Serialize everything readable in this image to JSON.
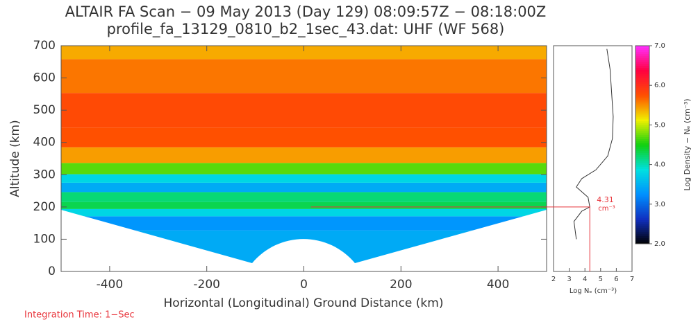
{
  "chart_data": [
    {
      "type": "heatmap",
      "title": "ALTAIR FA Scan − 09 May 2013 (Day 129) 08:09:57Z − 08:18:00Z",
      "subtitle": "profile_fa_13129_0810_b2_1sec_43.dat: UHF  (WF 568)",
      "xlabel": "Horizontal (Longitudinal) Ground Distance (km)",
      "ylabel": "Altitude (km)",
      "xlim": [
        -500,
        500
      ],
      "xticks": [
        -400,
        -200,
        0,
        200,
        400
      ],
      "ylim": [
        0,
        700
      ],
      "yticks": [
        0,
        100,
        200,
        300,
        400,
        500,
        600,
        700
      ],
      "footnote": "Integration Time: 1−Sec"
    },
    {
      "type": "line",
      "xlabel": "Log Nₑ (cm⁻³)",
      "xlim": [
        2,
        7
      ],
      "xticks": [
        2,
        3,
        4,
        5,
        6,
        7
      ],
      "ylim": [
        0,
        700
      ],
      "color": "#333333",
      "altitude": [
        100,
        155,
        187,
        200,
        230,
        262,
        288,
        315,
        358,
        412,
        480,
        627,
        690
      ],
      "values": [
        3.45,
        3.3,
        3.8,
        4.31,
        4.2,
        3.45,
        3.8,
        4.7,
        5.45,
        5.75,
        5.8,
        5.6,
        5.4
      ],
      "annotation": {
        "value": 4.31,
        "altitude": 200,
        "unit": "cm⁻³",
        "color": "#e8333a"
      }
    },
    {
      "type": "colorbar",
      "label": "Log Density − Nₑ (cm⁻³)",
      "ylim": [
        2,
        7
      ],
      "yticks": [
        {
          "value": 2,
          "label": "2.0"
        },
        {
          "value": 3,
          "label": "3.0"
        },
        {
          "value": 4,
          "label": "4.0"
        },
        {
          "value": 5,
          "label": "5.0"
        },
        {
          "value": 6,
          "label": "6.0"
        },
        {
          "value": 7,
          "label": "7.0"
        }
      ],
      "colors": [
        "#000000",
        "#1030c0",
        "#0090ff",
        "#00e0e0",
        "#10d010",
        "#f0f000",
        "#ff5000",
        "#ff0040",
        "#ff30ff"
      ]
    }
  ]
}
